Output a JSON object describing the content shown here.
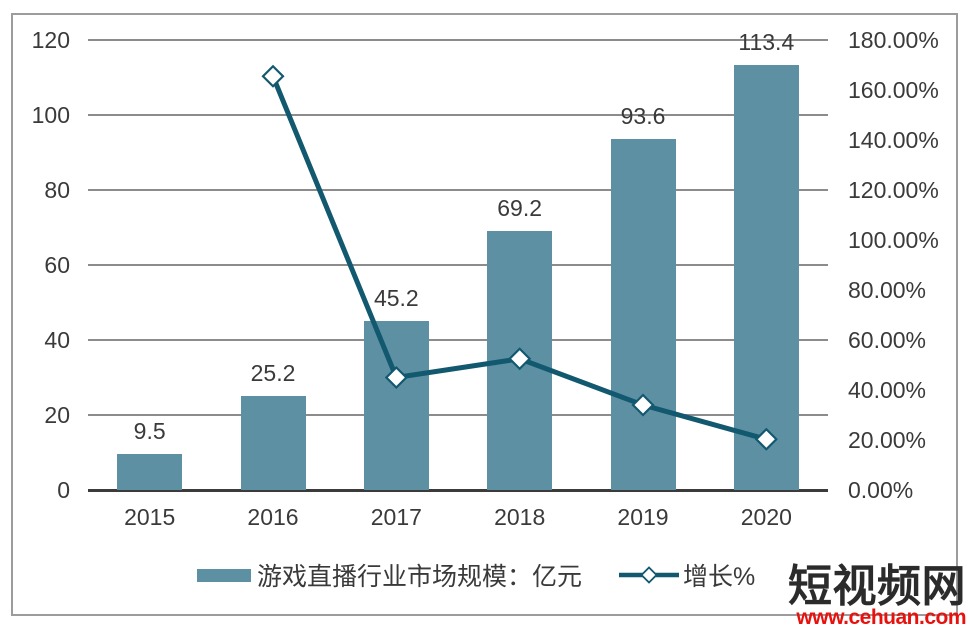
{
  "chart_data": {
    "type": "combo",
    "categories": [
      "2015",
      "2016",
      "2017",
      "2018",
      "2019",
      "2020"
    ],
    "series": [
      {
        "name": "游戏直播行业市场规模：亿元",
        "type": "bar",
        "axis": "left",
        "values": [
          9.5,
          25.2,
          45.2,
          69.2,
          93.6,
          113.4
        ],
        "labels": [
          "9.5",
          "25.2",
          "45.2",
          "69.2",
          "93.6",
          "113.4"
        ]
      },
      {
        "name": "增长%",
        "type": "line",
        "axis": "right",
        "values": [
          null,
          165.5,
          45.0,
          52.5,
          34.0,
          20.3
        ]
      }
    ],
    "left_axis": {
      "min": 0,
      "max": 120,
      "step": 20,
      "ticks": [
        "0",
        "20",
        "40",
        "60",
        "80",
        "100",
        "120"
      ]
    },
    "right_axis": {
      "min": 0,
      "max": 180,
      "step": 20,
      "ticks": [
        "0.00%",
        "20.00%",
        "40.00%",
        "60.00%",
        "80.00%",
        "100.00%",
        "120.00%",
        "140.00%",
        "160.00%",
        "180.00%"
      ]
    },
    "grid": true,
    "legend_position": "bottom",
    "legend": [
      {
        "label": "游戏直播行业市场规模：亿元",
        "marker": "bar-swatch"
      },
      {
        "label": "增长%",
        "marker": "line-diamond"
      }
    ]
  },
  "watermark": {
    "name": "短视频网",
    "url": "www.cehuan.com"
  },
  "colors": {
    "bar": "#5E90A4",
    "line": "#12586F",
    "grid": "#8C8C8C",
    "axis": "#3B3B3B",
    "text": "#3A3A3A",
    "border": "#9C9C9C",
    "wm_text": "#2B2B2B",
    "wm_url": "#E8110D",
    "marker_fill": "#FFFFFF"
  }
}
